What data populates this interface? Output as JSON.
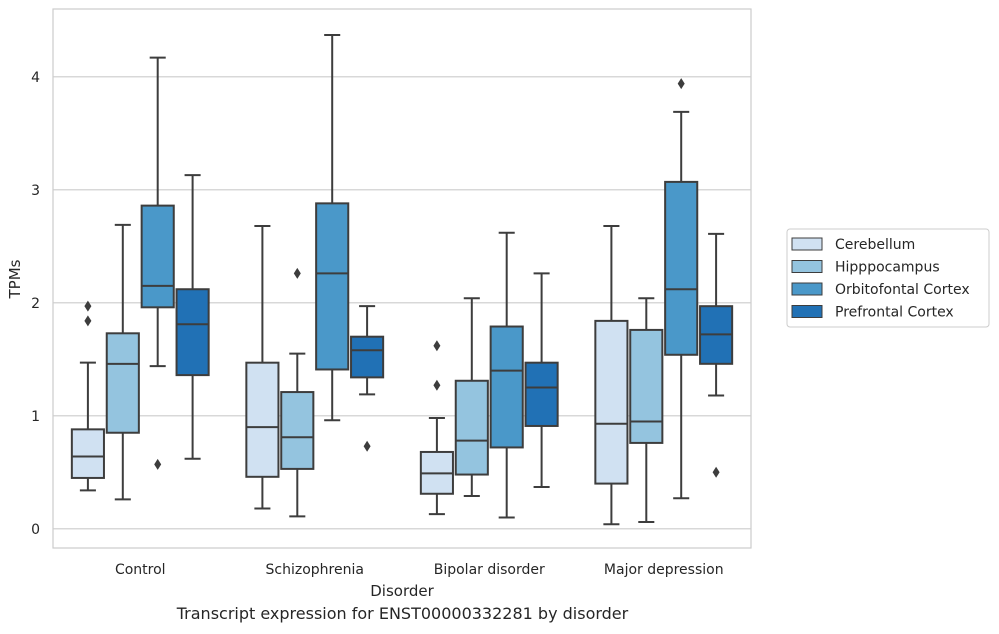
{
  "caption": "Transcript expression for ENST00000332281 by disorder",
  "chart_data": {
    "type": "box",
    "title": "",
    "xlabel": "Disorder",
    "ylabel": "TPMs",
    "ylim": [
      -0.17,
      4.6
    ],
    "yticks": [
      0,
      1,
      2,
      3,
      4
    ],
    "grid": true,
    "legend_position": "right",
    "categories": [
      "Control",
      "Schizophrenia",
      "Bipolar disorder",
      "Major depression"
    ],
    "series": [
      {
        "name": "Cerebellum",
        "color": "#d0e1f2",
        "boxes": [
          {
            "whislo": 0.34,
            "q1": 0.45,
            "med": 0.64,
            "q3": 0.88,
            "whishi": 1.47,
            "fliers": [
              1.84,
              1.97
            ]
          },
          {
            "whislo": 0.18,
            "q1": 0.46,
            "med": 0.9,
            "q3": 1.47,
            "whishi": 2.68,
            "fliers": []
          },
          {
            "whislo": 0.13,
            "q1": 0.31,
            "med": 0.49,
            "q3": 0.68,
            "whishi": 0.98,
            "fliers": [
              1.27,
              1.62
            ]
          },
          {
            "whislo": 0.04,
            "q1": 0.4,
            "med": 0.93,
            "q3": 1.84,
            "whishi": 2.68,
            "fliers": []
          }
        ]
      },
      {
        "name": "Hipppocampus",
        "color": "#94c4df",
        "boxes": [
          {
            "whislo": 0.26,
            "q1": 0.85,
            "med": 1.46,
            "q3": 1.73,
            "whishi": 2.69,
            "fliers": []
          },
          {
            "whislo": 0.11,
            "q1": 0.53,
            "med": 0.81,
            "q3": 1.21,
            "whishi": 1.55,
            "fliers": [
              2.26
            ]
          },
          {
            "whislo": 0.29,
            "q1": 0.48,
            "med": 0.78,
            "q3": 1.31,
            "whishi": 2.04,
            "fliers": []
          },
          {
            "whislo": 0.06,
            "q1": 0.76,
            "med": 0.95,
            "q3": 1.76,
            "whishi": 2.04,
            "fliers": []
          }
        ]
      },
      {
        "name": "Orbitofontal Cortex",
        "color": "#4a98c9",
        "boxes": [
          {
            "whislo": 1.44,
            "q1": 1.96,
            "med": 2.15,
            "q3": 2.86,
            "whishi": 4.17,
            "fliers": [
              0.57
            ]
          },
          {
            "whislo": 0.96,
            "q1": 1.41,
            "med": 2.26,
            "q3": 2.88,
            "whishi": 4.37,
            "fliers": []
          },
          {
            "whislo": 0.1,
            "q1": 0.72,
            "med": 1.4,
            "q3": 1.79,
            "whishi": 2.62,
            "fliers": []
          },
          {
            "whislo": 0.27,
            "q1": 1.54,
            "med": 2.12,
            "q3": 3.07,
            "whishi": 3.69,
            "fliers": [
              3.94
            ]
          }
        ]
      },
      {
        "name": "Prefrontal Cortex",
        "color": "#2171b5",
        "boxes": [
          {
            "whislo": 0.62,
            "q1": 1.36,
            "med": 1.81,
            "q3": 2.12,
            "whishi": 3.13,
            "fliers": []
          },
          {
            "whislo": 1.19,
            "q1": 1.34,
            "med": 1.58,
            "q3": 1.7,
            "whishi": 1.97,
            "fliers": [
              0.73
            ]
          },
          {
            "whislo": 0.37,
            "q1": 0.91,
            "med": 1.25,
            "q3": 1.47,
            "whishi": 2.26,
            "fliers": []
          },
          {
            "whislo": 1.18,
            "q1": 1.46,
            "med": 1.72,
            "q3": 1.97,
            "whishi": 2.61,
            "fliers": [
              0.5
            ]
          }
        ]
      }
    ]
  }
}
